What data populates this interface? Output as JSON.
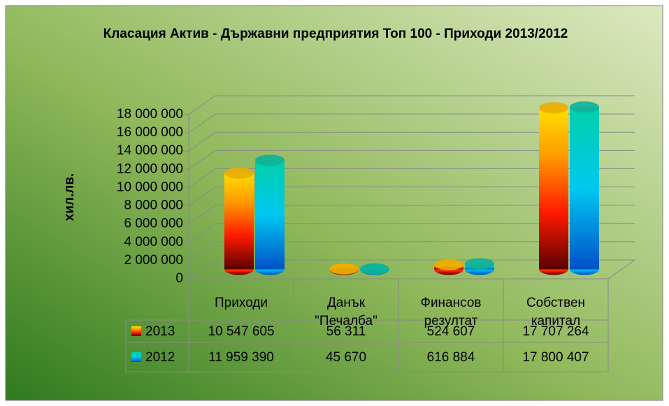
{
  "chart_data": {
    "type": "cylinder",
    "title": "Класация Актив - Държавни предприятия Топ 100 - Приходи 2013/2012",
    "y_label": "хил.лв.",
    "categories": [
      "Приходи",
      "Данък \"Печалба\"",
      "Финансов резултат",
      "Собствен капитал"
    ],
    "series": [
      {
        "name": "2013",
        "color": "#ff2a00",
        "values": [
          10547605,
          56311,
          524607,
          17707264
        ],
        "value_labels": [
          "10 547 605",
          "56 311",
          "524 607",
          "17 707 264"
        ]
      },
      {
        "name": "2012",
        "color": "#00b8e0",
        "values": [
          11959390,
          45670,
          616884,
          17800407
        ],
        "value_labels": [
          "11 959 390",
          "45 670",
          "616 884",
          "17 800 407"
        ]
      }
    ],
    "ylim": [
      0,
      18000000
    ],
    "yticks": [
      0,
      {
        "value": 2000000,
        "label": "2 000 000"
      },
      {
        "value": 4000000,
        "label": "4 000 000"
      },
      {
        "value": 6000000,
        "label": "6 000 000"
      },
      {
        "value": 8000000,
        "label": "8 000 000"
      },
      {
        "value": 10000000,
        "label": "10 000 000"
      },
      {
        "value": 12000000,
        "label": "12 000 000"
      },
      {
        "value": 14000000,
        "label": "14 000 000"
      },
      {
        "value": 16000000,
        "label": "16 000 000"
      },
      {
        "value": 18000000,
        "label": "18 000 000"
      }
    ],
    "grid": true,
    "data_table": true
  }
}
